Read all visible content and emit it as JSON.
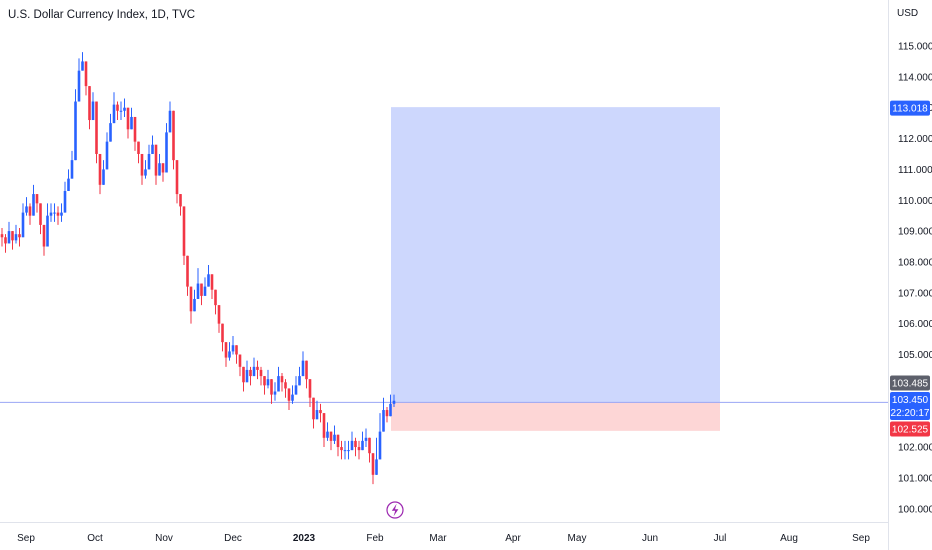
{
  "chart_title": "U.S. Dollar Currency Index, 1D, TVC",
  "currency_label": "USD",
  "colors": {
    "up": "#2962ff",
    "down": "#f23645",
    "profit_zone": "#cdd7fd",
    "loss_zone": "#fdd6d6",
    "axis_border": "#e0e3eb",
    "price_line": "#9aa6f5",
    "tag_target": "#2962ff",
    "tag_stop": "#f23645",
    "tag_last": "#5d606b"
  },
  "chart_data": {
    "type": "candlestick",
    "y_ticks": [
      "115.000",
      "114.000",
      "113.000",
      "112.000",
      "111.000",
      "110.000",
      "109.000",
      "108.000",
      "107.000",
      "106.000",
      "105.000",
      "104.000",
      "103.000",
      "102.000",
      "101.000",
      "100.000"
    ],
    "ylim": [
      99.6,
      116.0
    ],
    "x_ticks": [
      {
        "label": "Sep",
        "bold": false
      },
      {
        "label": "Oct",
        "bold": false
      },
      {
        "label": "Nov",
        "bold": false
      },
      {
        "label": "Dec",
        "bold": false
      },
      {
        "label": "2023",
        "bold": true
      },
      {
        "label": "Feb",
        "bold": false
      },
      {
        "label": "Mar",
        "bold": false
      },
      {
        "label": "Apr",
        "bold": false
      },
      {
        "label": "May",
        "bold": false
      },
      {
        "label": "Jun",
        "bold": false
      },
      {
        "label": "Jul",
        "bold": false
      },
      {
        "label": "Aug",
        "bold": false
      },
      {
        "label": "Sep",
        "bold": false
      }
    ],
    "closes": [
      108.8,
      108.6,
      109.0,
      108.7,
      108.9,
      108.8,
      109.6,
      109.8,
      109.5,
      110.2,
      109.9,
      109.2,
      108.5,
      109.5,
      109.6,
      109.6,
      109.5,
      109.6,
      110.3,
      110.7,
      111.3,
      113.2,
      114.2,
      114.5,
      113.7,
      112.6,
      113.2,
      111.5,
      110.5,
      111.0,
      111.9,
      112.5,
      113.1,
      112.9,
      112.9,
      113.0,
      112.3,
      112.7,
      111.9,
      111.5,
      110.8,
      111.0,
      111.5,
      111.8,
      110.8,
      111.2,
      110.9,
      112.2,
      112.9,
      111.3,
      110.2,
      109.8,
      108.2,
      107.2,
      106.4,
      106.8,
      107.3,
      106.9,
      107.2,
      107.6,
      107.1,
      106.6,
      106.0,
      105.4,
      104.9,
      105.1,
      105.3,
      105.0,
      104.6,
      104.1,
      104.5,
      104.3,
      104.6,
      104.5,
      104.3,
      104.0,
      104.2,
      103.7,
      103.8,
      104.3,
      104.1,
      103.9,
      103.5,
      103.7,
      104.0,
      104.3,
      104.8,
      104.2,
      103.6,
      102.9,
      103.2,
      103.1,
      102.3,
      102.5,
      102.2,
      102.4,
      102.0,
      101.9,
      101.9,
      101.9,
      102.2,
      102.0,
      101.9,
      102.2,
      102.3,
      101.8,
      101.1,
      101.6,
      102.5,
      103.2,
      103.0,
      103.4,
      103.5
    ],
    "highs": [
      109.1,
      108.9,
      109.3,
      109.0,
      109.2,
      109.1,
      109.9,
      110.1,
      109.9,
      110.5,
      110.2,
      109.6,
      108.9,
      109.9,
      109.9,
      109.9,
      109.8,
      109.9,
      110.6,
      111.0,
      111.6,
      113.6,
      114.6,
      114.8,
      114.0,
      112.9,
      113.5,
      111.8,
      110.8,
      111.3,
      112.2,
      112.8,
      113.5,
      113.2,
      113.2,
      113.3,
      112.6,
      113.0,
      112.2,
      111.8,
      111.1,
      111.3,
      111.8,
      112.1,
      111.1,
      111.5,
      111.2,
      112.5,
      113.2,
      111.6,
      110.5,
      110.1,
      108.5,
      107.5,
      106.8,
      107.1,
      107.8,
      107.3,
      107.5,
      107.9,
      107.4,
      106.9,
      106.3,
      105.7,
      105.2,
      105.4,
      105.6,
      105.3,
      104.9,
      104.4,
      104.8,
      104.6,
      104.9,
      104.8,
      104.6,
      104.3,
      104.5,
      104.0,
      104.1,
      104.6,
      104.4,
      104.2,
      103.8,
      104.0,
      104.3,
      104.6,
      105.1,
      104.5,
      103.9,
      103.2,
      103.5,
      103.4,
      102.6,
      102.8,
      102.5,
      102.7,
      102.3,
      102.2,
      102.2,
      102.2,
      102.5,
      102.3,
      102.2,
      102.5,
      102.6,
      102.1,
      101.4,
      102.3,
      103.1,
      103.6,
      103.3,
      103.7,
      103.7
    ],
    "lows": [
      108.5,
      108.3,
      108.7,
      108.4,
      108.6,
      108.5,
      109.3,
      109.5,
      109.2,
      109.9,
      109.6,
      108.9,
      108.2,
      109.2,
      109.3,
      109.3,
      109.2,
      109.3,
      110.0,
      110.4,
      111.0,
      112.9,
      113.9,
      114.2,
      113.4,
      112.3,
      112.9,
      111.2,
      110.2,
      110.7,
      111.6,
      112.2,
      112.8,
      112.6,
      112.6,
      112.7,
      112.0,
      112.4,
      111.6,
      111.2,
      110.5,
      110.7,
      111.2,
      111.5,
      110.5,
      110.9,
      110.6,
      111.9,
      112.6,
      111.0,
      109.9,
      109.5,
      107.9,
      106.9,
      106.0,
      106.5,
      107.0,
      106.6,
      106.9,
      107.3,
      106.8,
      106.3,
      105.7,
      105.1,
      104.6,
      104.8,
      105.0,
      104.7,
      104.3,
      103.8,
      104.2,
      104.0,
      104.3,
      104.2,
      104.0,
      103.7,
      103.9,
      103.4,
      103.5,
      104.0,
      103.8,
      103.6,
      103.2,
      103.4,
      103.7,
      104.0,
      104.5,
      103.9,
      103.3,
      102.6,
      102.9,
      102.8,
      102.0,
      102.2,
      101.9,
      102.1,
      101.7,
      101.6,
      101.6,
      101.6,
      101.9,
      101.7,
      101.6,
      101.9,
      102.0,
      101.5,
      100.8,
      101.1,
      101.8,
      102.7,
      102.8,
      103.1,
      103.3
    ],
    "position": {
      "entry": 103.45,
      "target": 113.018,
      "stop": 102.525
    },
    "price_tags": {
      "target": "113.018",
      "last": "103.485",
      "current": "103.450",
      "countdown": "22:20:17",
      "stop": "102.525"
    }
  }
}
